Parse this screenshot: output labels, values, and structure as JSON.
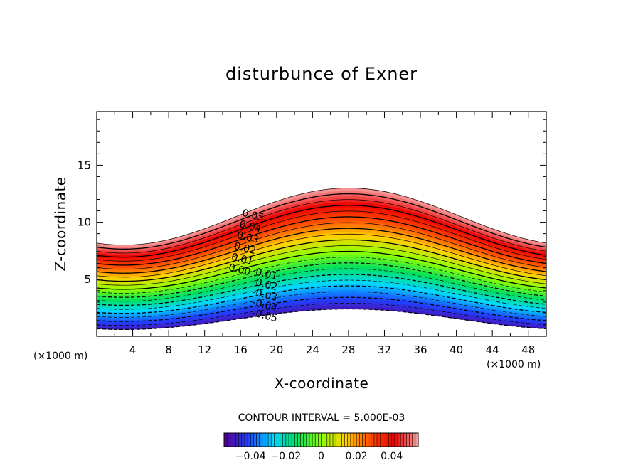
{
  "chart_data": {
    "type": "contour",
    "title": "disturbunce of Exner",
    "xlabel": "X-coordinate",
    "ylabel": "Z-coordinate",
    "x_unit": "(×1000 m)",
    "y_unit": "(×1000 m)",
    "xlim": [
      0,
      50
    ],
    "ylim": [
      0,
      19.7
    ],
    "xticks": [
      4,
      8,
      12,
      16,
      20,
      24,
      28,
      32,
      36,
      40,
      44,
      48
    ],
    "yticks": [
      5,
      10,
      15
    ],
    "contour_interval_text": "CONTOUR INTERVAL = 5.000E-03",
    "contour_levels": [
      -0.05,
      -0.045,
      -0.04,
      -0.035,
      -0.03,
      -0.025,
      -0.02,
      -0.015,
      -0.01,
      -0.005,
      0.0,
      0.005,
      0.01,
      0.015,
      0.02,
      0.025,
      0.03,
      0.035,
      0.04,
      0.045,
      0.05,
      0.055
    ],
    "contour_labels": [
      "0.05",
      "0.04",
      "0.03",
      "0.02",
      "0.01",
      "0.00",
      "-0.01",
      "-0.02",
      "-0.03",
      "-0.04",
      "-0.05"
    ],
    "colorbar": {
      "ticks": [
        -0.04,
        -0.02,
        0,
        0.02,
        0.04
      ],
      "tick_labels": [
        "−0.04",
        "−0.02",
        "0",
        "0.02",
        "0.04"
      ],
      "range": [
        -0.055,
        0.055
      ]
    },
    "colormap": [
      "#5a0090",
      "#2040ff",
      "#00d8ff",
      "#00e060",
      "#90ff00",
      "#ffd000",
      "#ff5000",
      "#ee0000",
      "#f8a0a0"
    ],
    "profile": {
      "description_shape": "cosine",
      "top_z_at_x0": 13.0,
      "top_z_at_valley": 8.0,
      "bottom_z_at_x0": 2.4,
      "bottom_z_at_valley": 0.6,
      "valley_x": 28,
      "period_x": 50
    }
  }
}
